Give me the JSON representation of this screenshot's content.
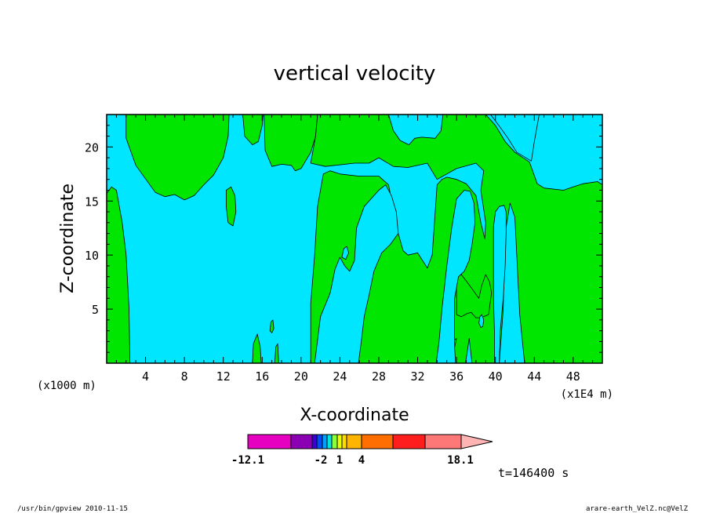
{
  "chart_data": {
    "type": "heatmap",
    "title": "vertical velocity",
    "xlabel": "X-coordinate",
    "ylabel": "Z-coordinate",
    "x_unit_left": "(x1000 m)",
    "x_unit_right": "(x1E4 m)",
    "xlim": [
      0,
      51
    ],
    "ylim": [
      0,
      23
    ],
    "x_ticks": [
      4,
      8,
      12,
      16,
      20,
      24,
      28,
      32,
      36,
      40,
      44,
      48
    ],
    "x_tick_labels": [
      "4",
      "8",
      "12",
      "16",
      "20",
      "24",
      "28",
      "32",
      "36",
      "40",
      "44",
      "48"
    ],
    "y_ticks": [
      5,
      10,
      15,
      20
    ],
    "y_tick_labels": [
      "5",
      "10",
      "15",
      "20"
    ],
    "background_color": "#00e6ff",
    "region_color": "#00e600",
    "contour_line_color": "#000000",
    "green_regions": [
      [
        [
          0,
          15.7
        ],
        [
          0.5,
          16.3
        ],
        [
          1,
          16
        ],
        [
          1.6,
          13
        ],
        [
          2,
          10
        ],
        [
          2.3,
          5
        ],
        [
          2.4,
          0
        ],
        [
          0,
          0
        ]
      ],
      [
        [
          2,
          23
        ],
        [
          2,
          20.8
        ],
        [
          3,
          18.3
        ],
        [
          5,
          15.8
        ],
        [
          6,
          15.4
        ],
        [
          7,
          15.6
        ],
        [
          8,
          15.1
        ],
        [
          9,
          15.5
        ],
        [
          10,
          16.5
        ],
        [
          11,
          17.4
        ],
        [
          12,
          19
        ],
        [
          12.5,
          21
        ],
        [
          12.6,
          23
        ]
      ],
      [
        [
          14,
          23
        ],
        [
          14.2,
          21
        ],
        [
          15,
          20.2
        ],
        [
          15.6,
          20.5
        ],
        [
          16,
          22
        ],
        [
          16.1,
          23
        ]
      ],
      [
        [
          16.2,
          23
        ],
        [
          16.3,
          19.7
        ],
        [
          17,
          18.2
        ],
        [
          18,
          18.4
        ],
        [
          19,
          18.3
        ],
        [
          19.4,
          17.8
        ],
        [
          20,
          18
        ],
        [
          21,
          19.5
        ],
        [
          21.5,
          21
        ],
        [
          21.7,
          23
        ]
      ],
      [
        [
          12.3,
          16
        ],
        [
          12.8,
          16.3
        ],
        [
          13.2,
          15.5
        ],
        [
          13.3,
          14
        ],
        [
          13,
          12.7
        ],
        [
          12.5,
          13
        ],
        [
          12.3,
          14.5
        ]
      ],
      [
        [
          15,
          0
        ],
        [
          15.1,
          1.8
        ],
        [
          15.5,
          2.7
        ],
        [
          15.8,
          1.5
        ],
        [
          15.9,
          0
        ]
      ],
      [
        [
          16.8,
          3
        ],
        [
          16.9,
          3.8
        ],
        [
          17.1,
          4
        ],
        [
          17.2,
          3.2
        ],
        [
          17,
          2.8
        ]
      ],
      [
        [
          17.3,
          0
        ],
        [
          17.4,
          1.5
        ],
        [
          17.6,
          1.8
        ],
        [
          17.7,
          0
        ]
      ],
      [
        [
          21,
          0
        ],
        [
          21,
          5.5
        ],
        [
          21.4,
          10
        ],
        [
          21.7,
          14.5
        ],
        [
          22.3,
          17.5
        ],
        [
          23,
          17.8
        ],
        [
          24,
          17.5
        ],
        [
          26,
          17.3
        ],
        [
          28,
          17.3
        ],
        [
          29,
          16.5
        ],
        [
          30,
          12
        ],
        [
          30.5,
          10.4
        ],
        [
          31,
          10
        ],
        [
          32,
          10.2
        ],
        [
          33,
          8.8
        ],
        [
          33.5,
          10
        ],
        [
          34,
          16.5
        ],
        [
          34.5,
          17
        ],
        [
          35,
          17.2
        ],
        [
          36,
          17
        ],
        [
          37,
          16.6
        ],
        [
          38,
          15.5
        ],
        [
          38.5,
          13
        ],
        [
          38.9,
          11.5
        ],
        [
          39,
          13
        ],
        [
          38.5,
          16
        ],
        [
          38.8,
          17.8
        ],
        [
          38,
          18.5
        ],
        [
          36,
          18
        ],
        [
          34,
          17
        ],
        [
          33,
          18.5
        ],
        [
          31,
          18.1
        ],
        [
          29.5,
          18.2
        ],
        [
          28,
          19
        ],
        [
          27,
          18.5
        ],
        [
          25.5,
          18.5
        ],
        [
          22.5,
          18.2
        ],
        [
          21,
          18.5
        ],
        [
          21.5,
          21
        ],
        [
          21.7,
          23
        ],
        [
          39,
          23
        ],
        [
          40,
          22
        ],
        [
          41,
          20.5
        ],
        [
          42,
          19.5
        ],
        [
          43.5,
          18.6
        ],
        [
          44.3,
          16.6
        ],
        [
          45,
          16.2
        ],
        [
          47,
          16
        ],
        [
          48,
          16.3
        ],
        [
          49,
          16.6
        ],
        [
          50.5,
          16.8
        ],
        [
          51,
          16.5
        ],
        [
          51,
          0
        ],
        [
          43,
          0
        ],
        [
          42.5,
          4.5
        ],
        [
          42.2,
          10
        ],
        [
          42,
          13.5
        ],
        [
          41.5,
          14.8
        ],
        [
          41,
          12
        ],
        [
          40.8,
          5
        ],
        [
          40.6,
          2.5
        ],
        [
          40.4,
          0
        ],
        [
          37.6,
          0
        ],
        [
          37.3,
          2.3
        ],
        [
          37.1,
          1
        ],
        [
          36.9,
          0
        ]
      ],
      [
        [
          23.8,
          0
        ],
        [
          24.3,
          3.5
        ],
        [
          24.6,
          6.5
        ],
        [
          25,
          5.5
        ],
        [
          24.9,
          2
        ],
        [
          24.6,
          0
        ]
      ],
      [
        [
          35.2,
          0
        ],
        [
          35.4,
          1
        ],
        [
          35.6,
          2
        ],
        [
          36,
          2.3
        ],
        [
          35.7,
          1
        ],
        [
          35.5,
          0
        ]
      ],
      [
        [
          36,
          4.5
        ],
        [
          36,
          8
        ],
        [
          36.5,
          8.2
        ],
        [
          37.5,
          7
        ],
        [
          38.3,
          6
        ],
        [
          38.6,
          7.2
        ],
        [
          39,
          8.2
        ],
        [
          39.4,
          7.5
        ],
        [
          39.6,
          6.5
        ],
        [
          39.3,
          4.5
        ],
        [
          38.5,
          4.2
        ],
        [
          38,
          4.2
        ],
        [
          37.5,
          4.7
        ],
        [
          37.1,
          4.6
        ],
        [
          36.5,
          4.3
        ]
      ]
    ],
    "cyan_regions": [
      [
        [
          21.4,
          0
        ],
        [
          22,
          4.3
        ],
        [
          23,
          6.5
        ],
        [
          23.5,
          8.7
        ],
        [
          24,
          9.8
        ],
        [
          24.5,
          9
        ],
        [
          25,
          8.5
        ],
        [
          25.5,
          9.5
        ],
        [
          25.7,
          12.5
        ],
        [
          26.5,
          14.5
        ],
        [
          28,
          16
        ],
        [
          28.7,
          16.5
        ],
        [
          29.3,
          15.5
        ],
        [
          29.8,
          14
        ],
        [
          30,
          12
        ],
        [
          29.2,
          11
        ],
        [
          28.3,
          10.2
        ],
        [
          27.5,
          8.5
        ],
        [
          27,
          6.3
        ],
        [
          26.5,
          4.3
        ],
        [
          26.2,
          2
        ],
        [
          25.9,
          0
        ]
      ],
      [
        [
          33.9,
          0
        ],
        [
          34.2,
          2
        ],
        [
          34.5,
          5
        ],
        [
          35,
          9
        ],
        [
          35.5,
          12.5
        ],
        [
          36,
          15.2
        ],
        [
          36.8,
          16
        ],
        [
          37.4,
          15.9
        ],
        [
          37.8,
          14.8
        ],
        [
          37.9,
          13
        ],
        [
          37.6,
          11
        ],
        [
          37.3,
          9.5
        ],
        [
          36.8,
          8.5
        ],
        [
          36.2,
          8
        ],
        [
          35.8,
          6
        ],
        [
          35.8,
          3.5
        ],
        [
          35.8,
          1.5
        ],
        [
          35.9,
          0
        ]
      ],
      [
        [
          39.8,
          12.6
        ],
        [
          40,
          14
        ],
        [
          40.4,
          14.5
        ],
        [
          40.9,
          14.6
        ],
        [
          41.1,
          14
        ],
        [
          41.1,
          12
        ],
        [
          41,
          9
        ],
        [
          40.8,
          6
        ],
        [
          40.5,
          3
        ],
        [
          40.4,
          0
        ],
        [
          39.9,
          0
        ],
        [
          39.9,
          3
        ],
        [
          39.8,
          6
        ],
        [
          39.8,
          9
        ]
      ],
      [
        [
          38.3,
          3.7
        ],
        [
          38.4,
          4.3
        ],
        [
          38.6,
          4.5
        ],
        [
          38.8,
          4
        ],
        [
          38.7,
          3.4
        ],
        [
          38.5,
          3.3
        ]
      ],
      [
        [
          24.2,
          9.8
        ],
        [
          24.4,
          10.6
        ],
        [
          24.7,
          10.8
        ],
        [
          24.9,
          10.2
        ],
        [
          24.6,
          9.6
        ]
      ],
      [
        [
          29,
          23
        ],
        [
          29.5,
          21.5
        ],
        [
          30.2,
          20.6
        ],
        [
          31.1,
          20.2
        ],
        [
          31.7,
          20.8
        ],
        [
          32.4,
          20.9
        ],
        [
          33.8,
          20.8
        ],
        [
          34.4,
          21.5
        ],
        [
          34.6,
          23
        ]
      ],
      [
        [
          39.5,
          23
        ],
        [
          40.5,
          21.8
        ],
        [
          41.3,
          20.8
        ],
        [
          42.2,
          19.5
        ],
        [
          43.7,
          18.7
        ],
        [
          44,
          20.5
        ],
        [
          44.5,
          23
        ]
      ]
    ],
    "colorbar": {
      "colors": [
        "#e600bf",
        "#8c00b4",
        "#3c00d2",
        "#004cff",
        "#00a0ff",
        "#00e6dc",
        "#8cff3c",
        "#e6ff00",
        "#ffdc00",
        "#ffb400",
        "#ff6e00",
        "#ff1e1e",
        "#ff7878",
        "#ffb4b4"
      ],
      "tick_labels": [
        "-12.1",
        "-2",
        "1",
        "4",
        "18.1"
      ]
    },
    "time_label": "t=146400 s"
  },
  "footer": {
    "left": "/usr/bin/gpview   2010-11-15",
    "right": "arare-earth_VelZ.nc@VelZ"
  }
}
